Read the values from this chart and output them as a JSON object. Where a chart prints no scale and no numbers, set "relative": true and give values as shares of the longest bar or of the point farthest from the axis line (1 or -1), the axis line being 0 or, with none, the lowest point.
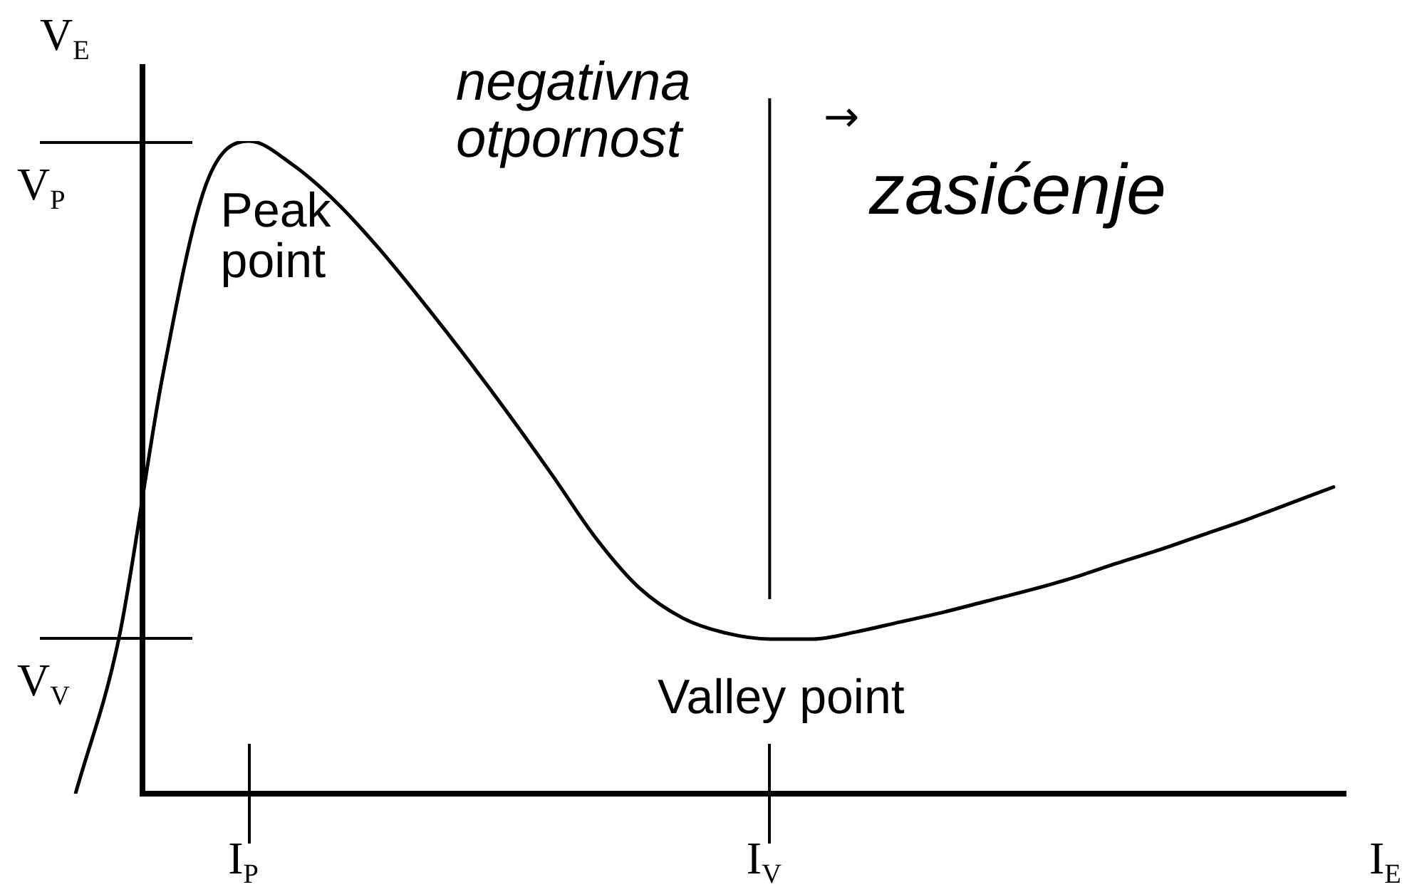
{
  "chart_data": {
    "type": "line",
    "xlabel": "I$_{E}$",
    "ylabel": "V$_{E}$",
    "relative": true,
    "categories": [
      null,
      null,
      null,
      null,
      "I$_{P}$",
      null,
      null,
      null,
      null,
      null,
      null,
      null,
      null,
      null,
      null,
      null,
      "I$_{V}$",
      null,
      null,
      null,
      null,
      null,
      null,
      null,
      null,
      null,
      null,
      null,
      null,
      null
    ],
    "series": [
      {
        "color": "#000000",
        "values": [
          0,
          0.238,
          0.637,
          0.932,
          1,
          0.964,
          0.907,
          0.835,
          0.754,
          0.669,
          0.58,
          0.487,
          0.391,
          0.315,
          0.269,
          0.246,
          0.237,
          0.237,
          0.248,
          0.263,
          0.278,
          0.295,
          0.312,
          0.331,
          0.353,
          0.374,
          0.397,
          0.42,
          0.445,
          0.47
        ]
      }
    ],
    "ref_lines": [
      {
        "axis": "x",
        "value": "I$_{V}$",
        "color": "#000000"
      }
    ],
    "annotations": [
      "negativna otpornost",
      "→",
      "zasićenje",
      {
        "text": "Peak point",
        "x": "I$_{P}$",
        "y": 1
      },
      {
        "text": "Valley point",
        "x": "I$_{V}$",
        "y": 0.237
      },
      "V$_{P}$",
      "V$_{V}$"
    ],
    "legend": false,
    "marker": "none",
    "line_style": "solid"
  }
}
